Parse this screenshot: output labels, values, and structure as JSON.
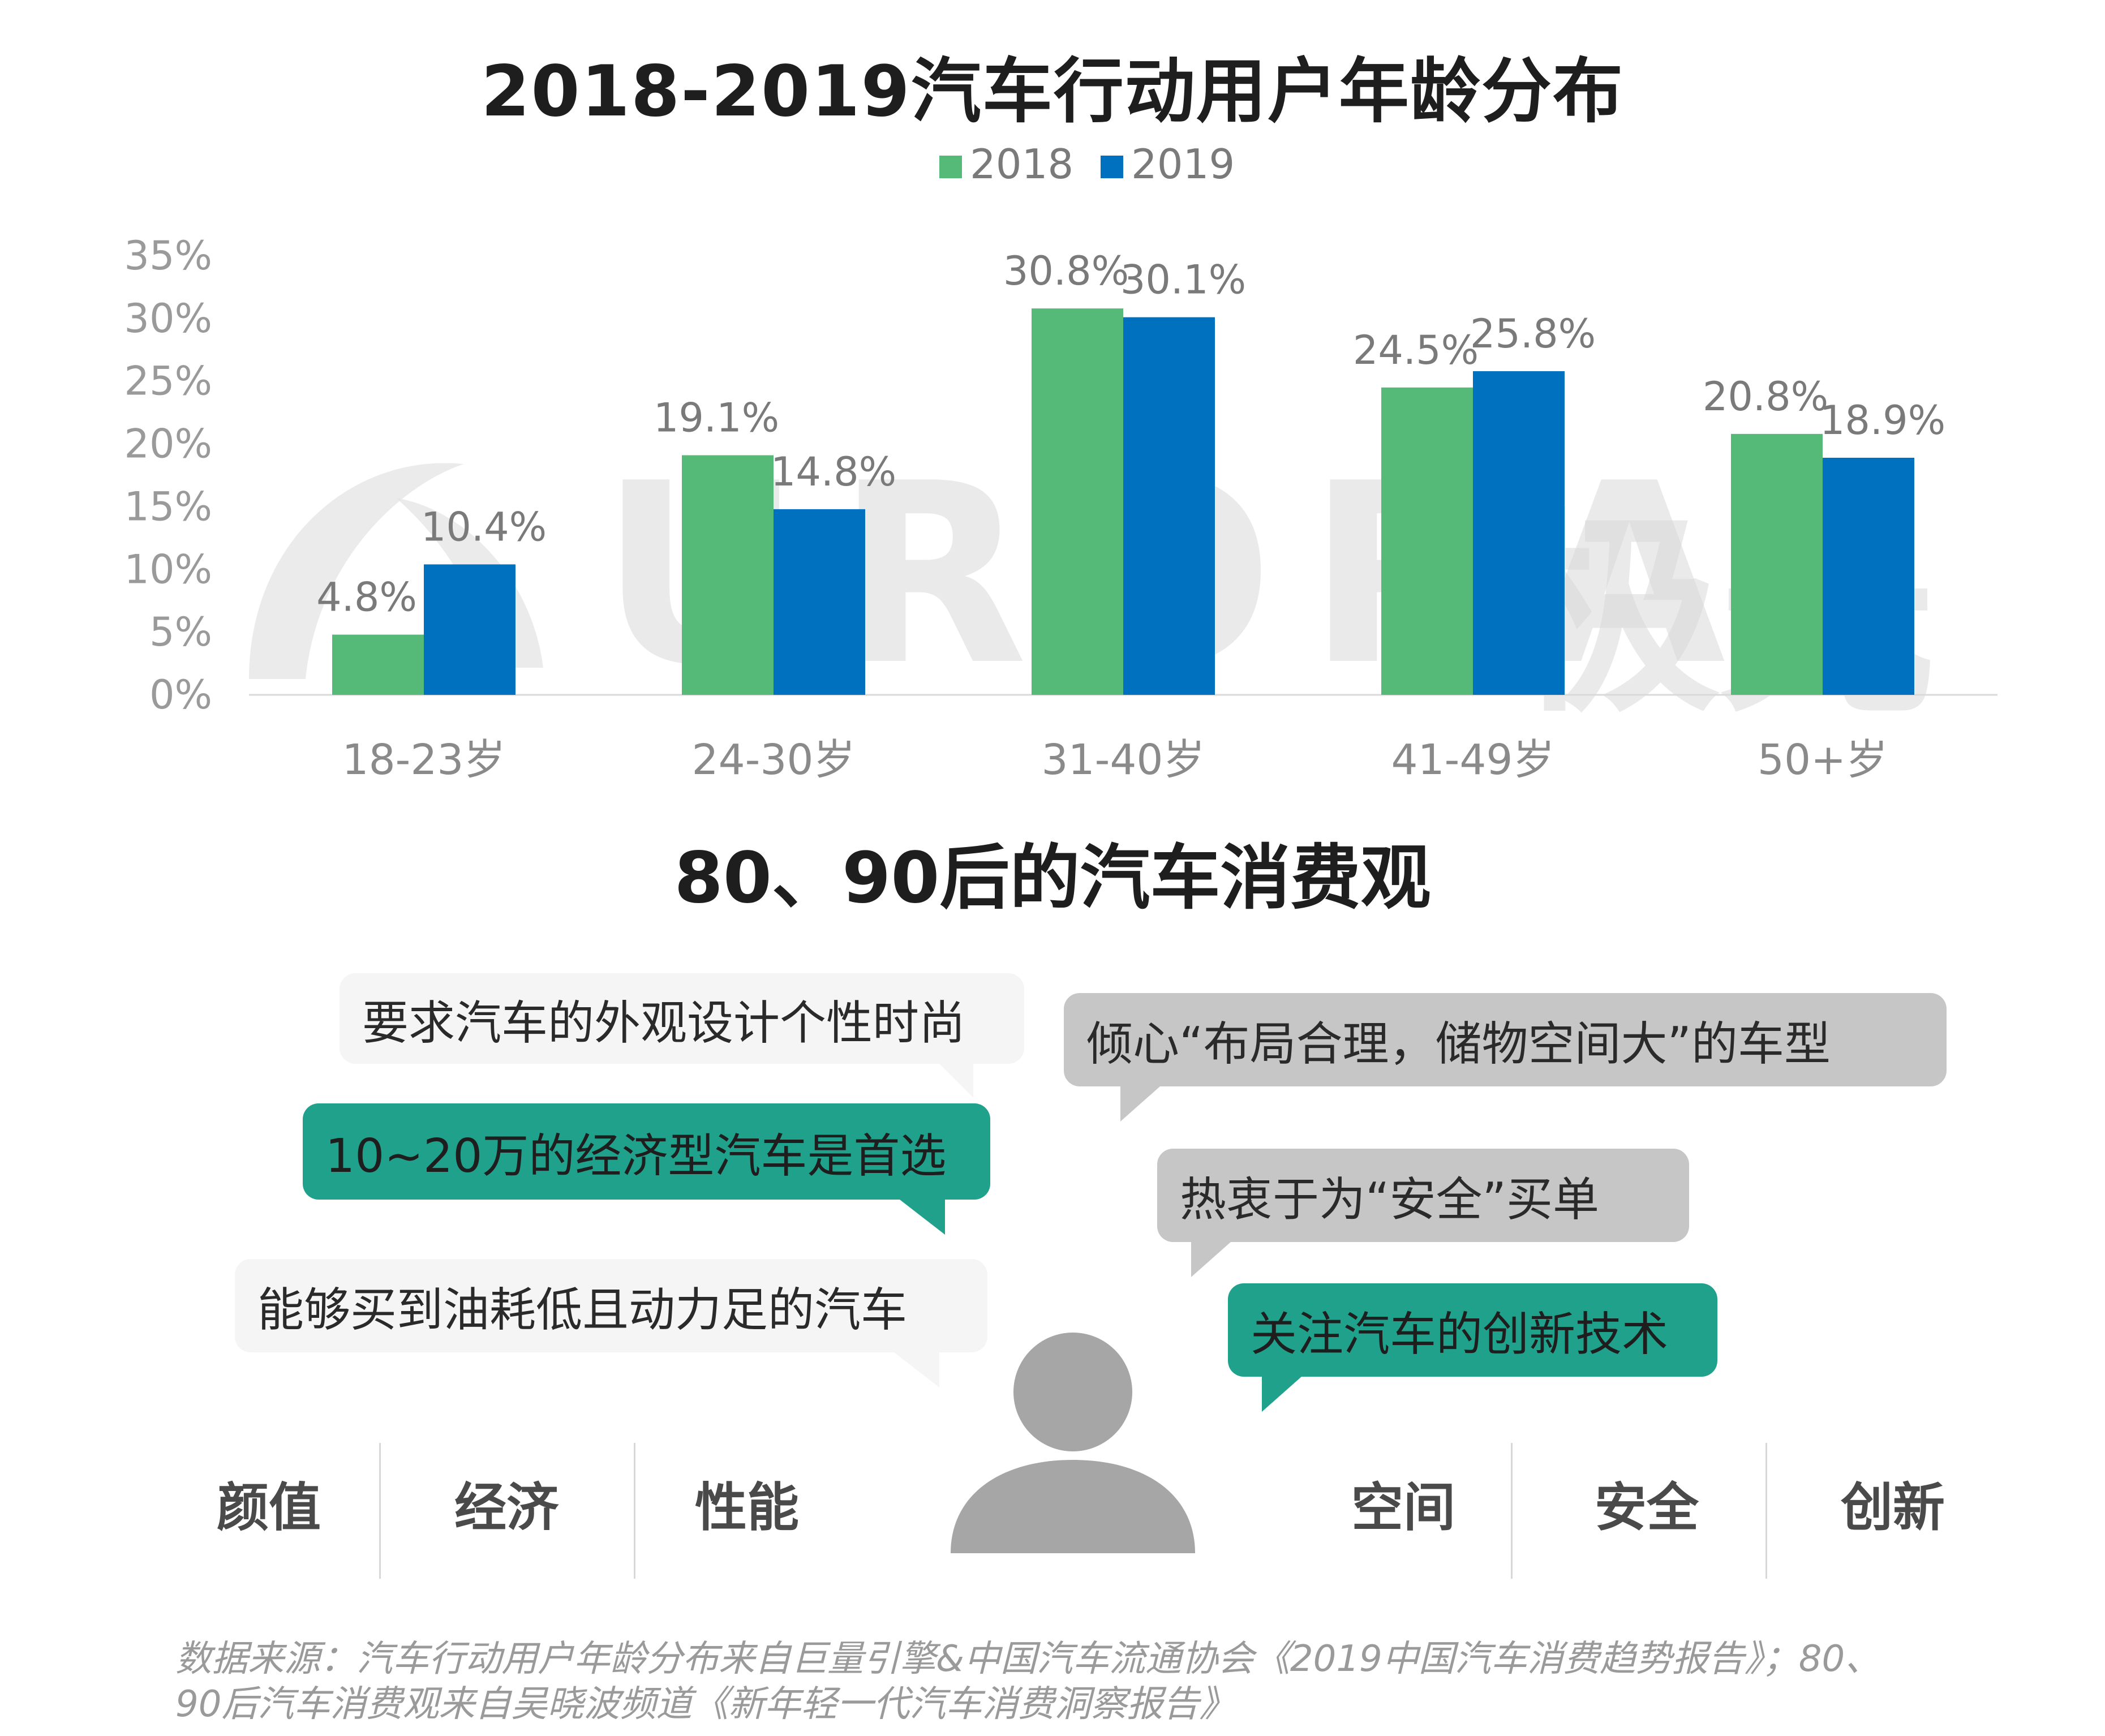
{
  "chart_title": "2018-2019汽车行动用户年龄分布",
  "watermark": {
    "text": "URORA",
    "cn": "极光"
  },
  "colors": {
    "series_2018": "#55b978",
    "series_2019": "#0071bf",
    "teal": "#1fa18c",
    "gray": "#c6c6c6"
  },
  "chart_data": {
    "type": "bar",
    "title": "2018-2019汽车行动用户年龄分布",
    "categories": [
      "18-23岁",
      "24-30岁",
      "31-40岁",
      "41-49岁",
      "50+岁"
    ],
    "series": [
      {
        "name": "2018",
        "values": [
          4.8,
          19.1,
          30.8,
          24.5,
          20.8
        ],
        "labels": [
          "4.8%",
          "19.1%",
          "30.8%",
          "24.5%",
          "20.8%"
        ]
      },
      {
        "name": "2019",
        "values": [
          10.4,
          14.8,
          30.1,
          25.8,
          18.9
        ],
        "labels": [
          "10.4%",
          "14.8%",
          "30.1%",
          "25.8%",
          "18.9%"
        ]
      }
    ],
    "yticks": [
      "0%",
      "5%",
      "10%",
      "15%",
      "20%",
      "25%",
      "30%",
      "35%"
    ],
    "ylim": [
      0,
      35
    ],
    "legend": "top-center",
    "grid": false,
    "xlabel": "",
    "ylabel": ""
  },
  "section_title": "80、90后的汽车消费观",
  "bubbles": [
    "要求汽车的外观设计个性时尚",
    "倾心“布局合理，储物空间大”的车型",
    "10~20万的经济型汽车是首选",
    "热衷于为“安全”买单",
    "能够买到油耗低且动力足的汽车",
    "关注汽车的创新技术"
  ],
  "keywords": [
    "颜值",
    "经济",
    "性能",
    "空间",
    "安全",
    "创新"
  ],
  "source": {
    "line1": "数据来源：汽车行动用户年龄分布来自巨量引擎&中国汽车流通协会《2019中国汽车消费趋势报告》；80、",
    "line2": "90后汽车消费观来自吴晓波频道《新年轻一代汽车消费洞察报告》"
  }
}
